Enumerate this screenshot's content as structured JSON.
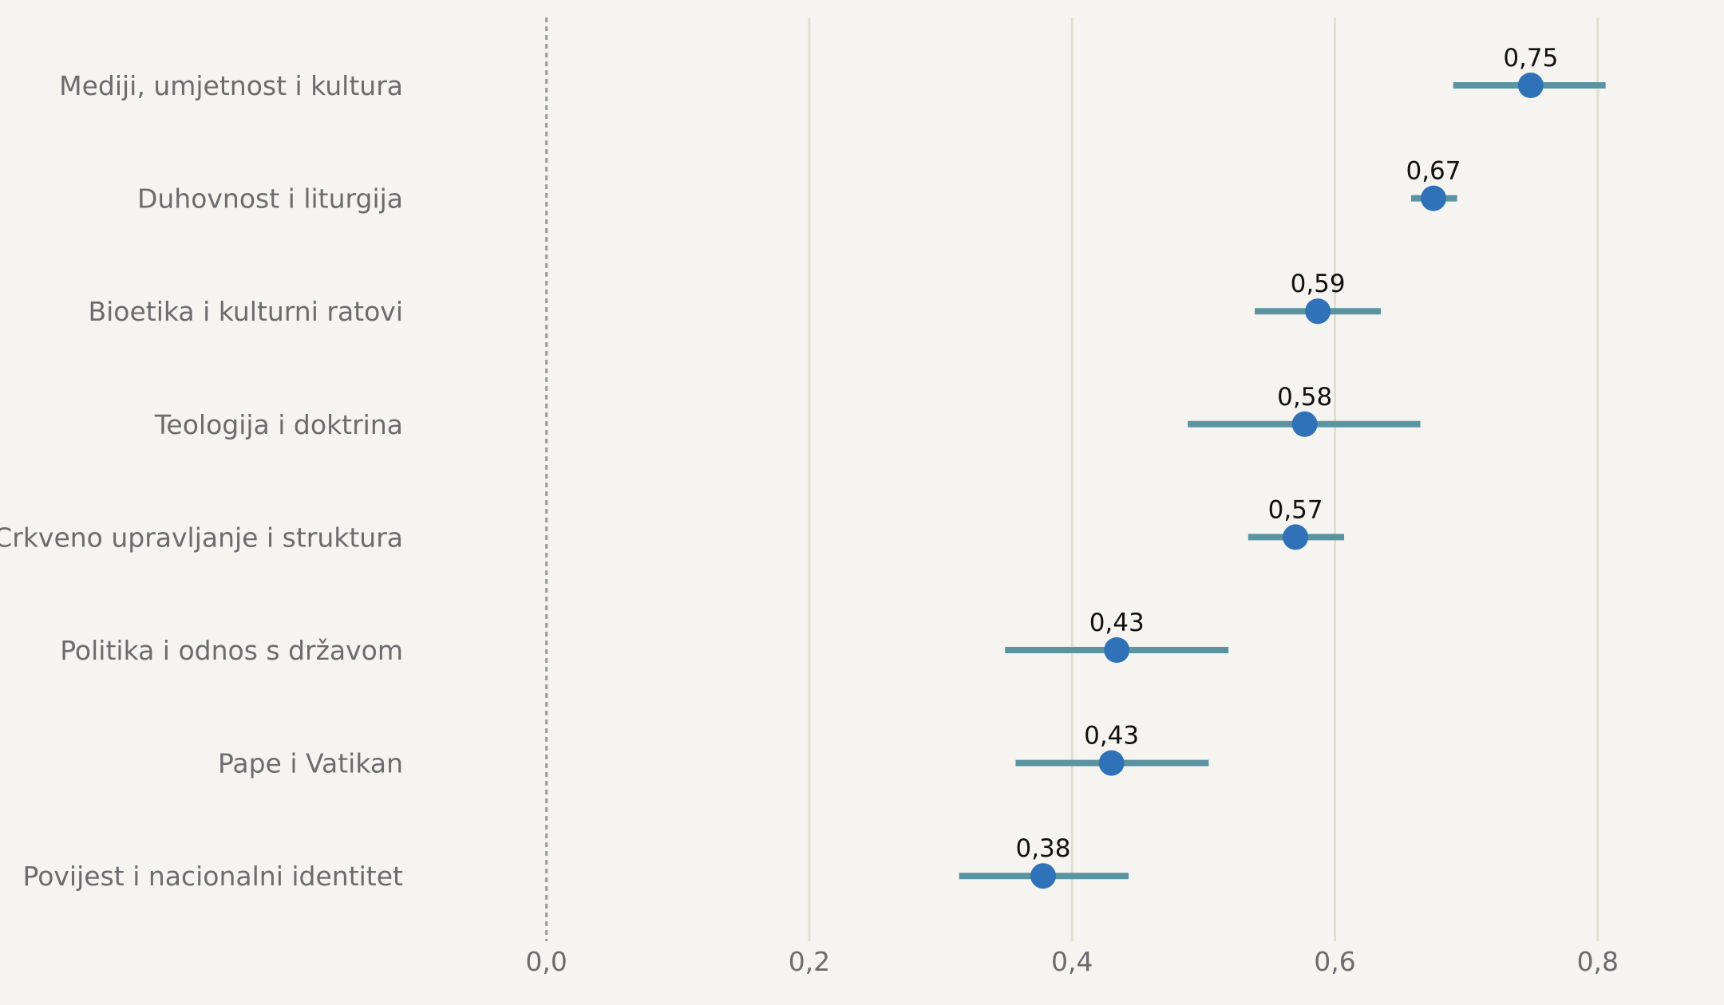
{
  "chart_data": {
    "type": "scatter",
    "orientation": "horizontal-dot-with-error-bars",
    "title": "",
    "xlabel": "",
    "ylabel": "",
    "xlim": [
      -0.1,
      0.89
    ],
    "xticks": [
      0.0,
      0.2,
      0.4,
      0.6,
      0.8
    ],
    "xtick_labels": [
      "0,0",
      "0,2",
      "0,4",
      "0,6",
      "0,8"
    ],
    "reference_line": 0.0,
    "grid": "vertical",
    "colors": {
      "point": "#2f72b8",
      "error_bar": "#5a94a0",
      "grid": "#e0dfd0",
      "reference": "#9a9a9a",
      "background": "#f5f4f0"
    },
    "categories": [
      "Mediji, umjetnost i kultura",
      "Duhovnost i liturgija",
      "Bioetika i kulturni ratovi",
      "Teologija i doktrina",
      "Crkveno upravljanje i struktura",
      "Politika i odnos s državom",
      "Pape i Vatikan",
      "Povijest i nacionalni identitet"
    ],
    "values": [
      0.749,
      0.675,
      0.587,
      0.577,
      0.57,
      0.434,
      0.43,
      0.378
    ],
    "value_labels": [
      "0,75",
      "0,67",
      "0,59",
      "0,58",
      "0,57",
      "0,43",
      "0,43",
      "0,38"
    ],
    "ci_low": [
      0.69,
      0.658,
      0.539,
      0.488,
      0.534,
      0.349,
      0.357,
      0.314
    ],
    "ci_high": [
      0.806,
      0.693,
      0.635,
      0.665,
      0.607,
      0.519,
      0.504,
      0.443
    ]
  }
}
